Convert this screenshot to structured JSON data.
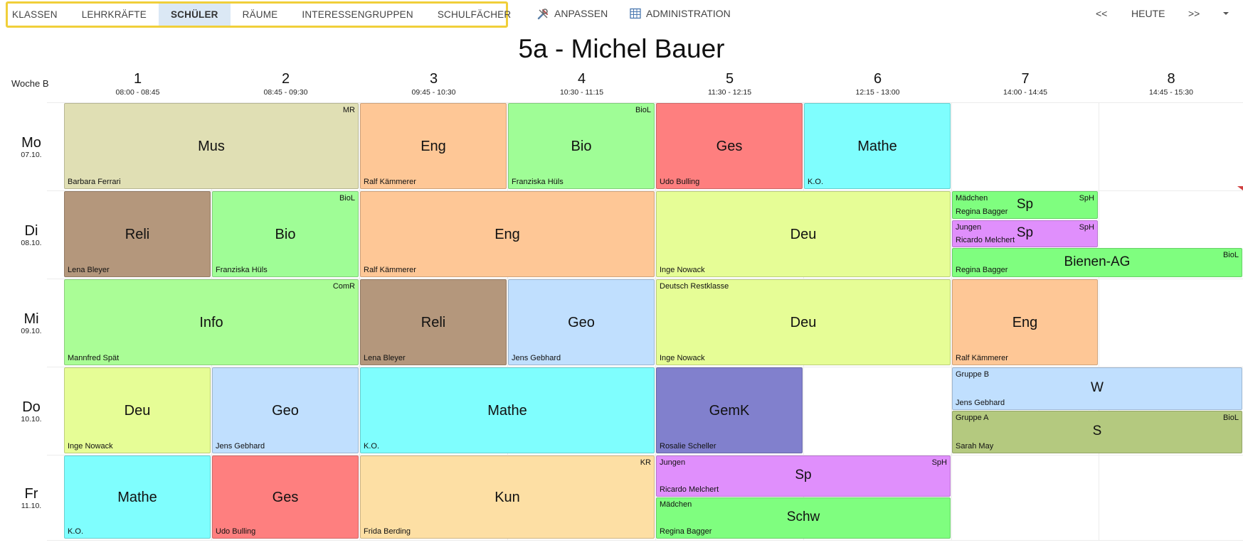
{
  "nav": {
    "tabs": [
      {
        "label": "KLASSEN",
        "active": false
      },
      {
        "label": "LEHRKRÄFTE",
        "active": false
      },
      {
        "label": "SCHÜLER",
        "active": true
      },
      {
        "label": "RÄUME",
        "active": false
      },
      {
        "label": "INTERESSENGRUPPEN",
        "active": false
      },
      {
        "label": "SCHULFÄCHER",
        "active": false
      }
    ],
    "customize_label": "ANPASSEN",
    "admin_label": "ADMINISTRATION",
    "prev_label": "<<",
    "today_label": "HEUTE",
    "next_label": ">>",
    "menu_icon": "caret-down-icon"
  },
  "title": "5a - Michel Bauer",
  "week_label": "Woche B",
  "periods": [
    {
      "num": "1",
      "time": "08:00 - 08:45"
    },
    {
      "num": "2",
      "time": "08:45 - 09:30"
    },
    {
      "num": "3",
      "time": "09:45 - 10:30"
    },
    {
      "num": "4",
      "time": "10:30 - 11:15"
    },
    {
      "num": "5",
      "time": "11:30 - 12:15"
    },
    {
      "num": "6",
      "time": "12:15 - 13:00"
    },
    {
      "num": "7",
      "time": "14:00 - 14:45"
    },
    {
      "num": "8",
      "time": "14:45 - 15:30"
    }
  ],
  "days": [
    {
      "name": "Mo",
      "date": "07.10."
    },
    {
      "name": "Di",
      "date": "08.10."
    },
    {
      "name": "Mi",
      "date": "09.10."
    },
    {
      "name": "Do",
      "date": "10.10."
    },
    {
      "name": "Fr",
      "date": "11.10."
    }
  ],
  "colors": {
    "Mus": "#e0dfb4",
    "Eng": "#fec796",
    "Bio": "#9ffd96",
    "Ges": "#fe7f7f",
    "Mathe": "#7ffefe",
    "Reli": "#b4977c",
    "Deu": "#e6fd96",
    "Info": "#aafd96",
    "Geo": "#c0dffe",
    "GemK": "#8180cd",
    "Kun": "#fddfa4",
    "Sp_Mädchen": "#7ffe7f",
    "Sp_Jungen": "#e08ffc",
    "Bienen-AG": "#7ffe7f",
    "W": "#c0dffe",
    "S": "#b4c97f",
    "Schw": "#7ffe7f"
  },
  "lessons": [
    {
      "subject": "Mus",
      "teacher": "Barbara Ferrari",
      "room": "MR",
      "group": ""
    },
    {
      "subject": "Eng",
      "teacher": "Ralf Kämmerer",
      "room": "",
      "group": ""
    },
    {
      "subject": "Bio",
      "teacher": "Franziska Hüls",
      "room": "BioL",
      "group": ""
    },
    {
      "subject": "Ges",
      "teacher": "Udo Bulling",
      "room": "",
      "group": ""
    },
    {
      "subject": "Mathe",
      "teacher": "K.O.",
      "room": "",
      "group": ""
    },
    {
      "subject": "Reli",
      "teacher": "Lena Bleyer",
      "room": "",
      "group": ""
    },
    {
      "subject": "Bio",
      "teacher": "Franziska Hüls",
      "room": "BioL",
      "group": ""
    },
    {
      "subject": "Eng",
      "teacher": "Ralf Kämmerer",
      "room": "",
      "group": ""
    },
    {
      "subject": "Deu",
      "teacher": "Inge Nowack",
      "room": "",
      "group": ""
    },
    {
      "subject": "Sp",
      "teacher": "Regina Bagger",
      "room": "SpH",
      "group": "Mädchen"
    },
    {
      "subject": "Sp",
      "teacher": "Ricardo Melchert",
      "room": "SpH",
      "group": "Jungen"
    },
    {
      "subject": "Bienen-AG",
      "teacher": "Regina Bagger",
      "room": "BioL",
      "group": ""
    },
    {
      "subject": "Info",
      "teacher": "Mannfred Spät",
      "room": "ComR",
      "group": ""
    },
    {
      "subject": "Reli",
      "teacher": "Lena Bleyer",
      "room": "",
      "group": ""
    },
    {
      "subject": "Geo",
      "teacher": "Jens Gebhard",
      "room": "",
      "group": ""
    },
    {
      "subject": "Deu",
      "teacher": "Inge Nowack",
      "room": "",
      "group": "Deutsch Restklasse"
    },
    {
      "subject": "Eng",
      "teacher": "Ralf Kämmerer",
      "room": "",
      "group": ""
    },
    {
      "subject": "Deu",
      "teacher": "Inge Nowack",
      "room": "",
      "group": ""
    },
    {
      "subject": "Geo",
      "teacher": "Jens Gebhard",
      "room": "",
      "group": ""
    },
    {
      "subject": "Mathe",
      "teacher": "K.O.",
      "room": "",
      "group": ""
    },
    {
      "subject": "GemK",
      "teacher": "Rosalie Scheller",
      "room": "",
      "group": ""
    },
    {
      "subject": "W",
      "teacher": "Jens Gebhard",
      "room": "",
      "group": "Gruppe B"
    },
    {
      "subject": "S",
      "teacher": "Sarah May",
      "room": "BioL",
      "group": "Gruppe A"
    },
    {
      "subject": "Mathe",
      "teacher": "K.O.",
      "room": "",
      "group": ""
    },
    {
      "subject": "Ges",
      "teacher": "Udo Bulling",
      "room": "",
      "group": ""
    },
    {
      "subject": "Kun",
      "teacher": "Frida Berding",
      "room": "KR",
      "group": ""
    },
    {
      "subject": "Sp",
      "teacher": "Ricardo Melchert",
      "room": "SpH",
      "group": "Jungen"
    },
    {
      "subject": "Schw",
      "teacher": "Regina Bagger",
      "room": "",
      "group": "Mädchen"
    }
  ]
}
